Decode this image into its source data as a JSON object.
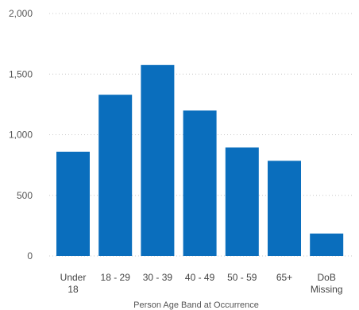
{
  "chart_data": {
    "type": "bar",
    "categories": [
      [
        "Under",
        "18"
      ],
      [
        "18 - 29"
      ],
      [
        "30 - 39"
      ],
      [
        "40 - 49"
      ],
      [
        "50 - 59"
      ],
      [
        "65+"
      ],
      [
        "DoB",
        "Missing"
      ]
    ],
    "values": [
      860,
      1330,
      1575,
      1200,
      895,
      785,
      185
    ],
    "xlabel": "Person Age Band at Occurrence",
    "ylabel": "",
    "ylim": [
      0,
      2000
    ],
    "yticks": [
      0,
      500,
      1000,
      1500,
      2000
    ],
    "ytick_labels": [
      "0",
      "500",
      "1,000",
      "1,500",
      "2,000"
    ],
    "grid": true,
    "bar_color": "#0a6ebd"
  }
}
